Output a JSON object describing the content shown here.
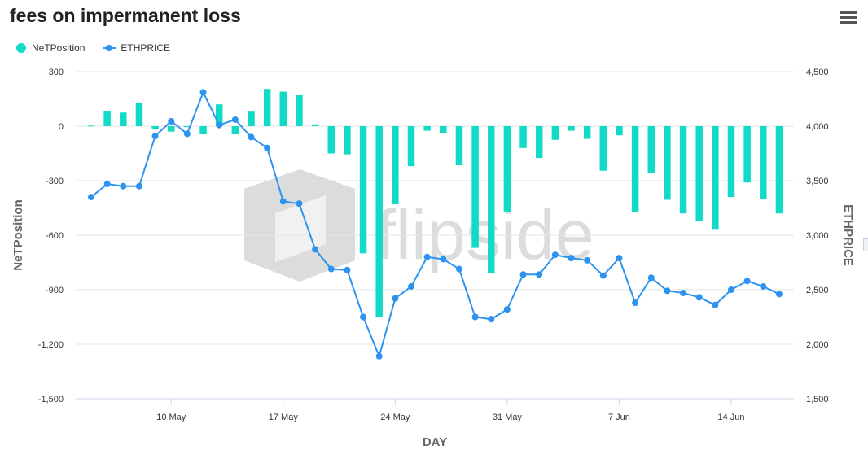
{
  "title": "fees on impermanent loss",
  "colors": {
    "bar": "#11dbc7",
    "line": "#2d93f0",
    "grid": "#e6e6e6",
    "watermark": "#dcdcdc"
  },
  "watermark": "flipside",
  "legend": [
    {
      "label": "NeTPosition",
      "kind": "column"
    },
    {
      "label": "ETHPRICE",
      "kind": "line"
    }
  ],
  "chart_data": {
    "type": "bar+line",
    "title": "fees on impermanent loss",
    "xlabel": "DAY",
    "ylabel_left": "NeTPosition",
    "ylabel_right": "ETHPRICE",
    "ylim_left": [
      -1500,
      300
    ],
    "ylim_right": [
      1500,
      4500
    ],
    "yticks_left": [
      "300",
      "0",
      "-300",
      "-600",
      "-900",
      "-1,200",
      "-1,500"
    ],
    "yticks_right": [
      "4,500",
      "4,000",
      "3,500",
      "3,000",
      "2,500",
      "2,000",
      "1,500"
    ],
    "xticks": [
      {
        "label": "10 May",
        "day": 5
      },
      {
        "label": "17 May",
        "day": 12
      },
      {
        "label": "24 May",
        "day": 19
      },
      {
        "label": "31 May",
        "day": 26
      },
      {
        "label": "7 Jun",
        "day": 33
      },
      {
        "label": "14 Jun",
        "day": 40
      }
    ],
    "days": [
      "2021-05-05",
      "2021-05-06",
      "2021-05-07",
      "2021-05-08",
      "2021-05-09",
      "2021-05-10",
      "2021-05-11",
      "2021-05-12",
      "2021-05-13",
      "2021-05-14",
      "2021-05-15",
      "2021-05-16",
      "2021-05-17",
      "2021-05-18",
      "2021-05-19",
      "2021-05-20",
      "2021-05-21",
      "2021-05-22",
      "2021-05-23",
      "2021-05-24",
      "2021-05-25",
      "2021-05-26",
      "2021-05-27",
      "2021-05-28",
      "2021-05-29",
      "2021-05-30",
      "2021-05-31",
      "2021-06-01",
      "2021-06-02",
      "2021-06-03",
      "2021-06-04",
      "2021-06-05",
      "2021-06-06",
      "2021-06-07",
      "2021-06-08",
      "2021-06-09",
      "2021-06-10",
      "2021-06-11",
      "2021-06-12",
      "2021-06-13",
      "2021-06-14",
      "2021-06-15",
      "2021-06-16",
      "2021-06-17"
    ],
    "series": [
      {
        "name": "NeTPosition",
        "type": "column",
        "values": [
          3,
          85,
          75,
          130,
          -15,
          -30,
          -5,
          -45,
          120,
          -45,
          80,
          205,
          190,
          170,
          10,
          -150,
          -155,
          -700,
          -1050,
          -430,
          -220,
          -25,
          -40,
          -215,
          -670,
          -810,
          -470,
          -120,
          -175,
          -75,
          -25,
          -70,
          -245,
          -50,
          -470,
          -255,
          -405,
          -480,
          -520,
          -570,
          -390,
          -310,
          -400,
          -480
        ]
      },
      {
        "name": "ETHPRICE",
        "type": "line",
        "values": [
          3350,
          3470,
          3450,
          3450,
          3910,
          4045,
          3930,
          4310,
          4010,
          4060,
          3900,
          3800,
          3310,
          3290,
          2870,
          2690,
          2680,
          2250,
          1890,
          2420,
          2530,
          2800,
          2780,
          2690,
          2250,
          2230,
          2320,
          2640,
          2640,
          2820,
          2790,
          2770,
          2630,
          2790,
          2380,
          2610,
          2490,
          2470,
          2430,
          2360,
          2500,
          2580,
          2530,
          2460
        ]
      }
    ]
  }
}
